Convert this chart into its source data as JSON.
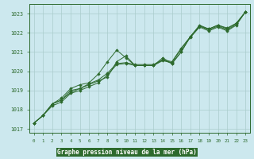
{
  "xlabel": "Graphe pression niveau de la mer (hPa)",
  "xlim": [
    -0.5,
    23.5
  ],
  "ylim": [
    1016.8,
    1023.5
  ],
  "yticks": [
    1017,
    1018,
    1019,
    1020,
    1021,
    1022,
    1023
  ],
  "xticks": [
    0,
    1,
    2,
    3,
    4,
    5,
    6,
    7,
    8,
    9,
    10,
    11,
    12,
    13,
    14,
    15,
    16,
    17,
    18,
    19,
    20,
    21,
    22,
    23
  ],
  "background_color": "#cce8ee",
  "grid_color": "#aacccc",
  "line_color": "#2d6a2d",
  "marker_color": "#2d6a2d",
  "xlabel_bg": "#2d6a2d",
  "xlabel_fg": "#ffffff",
  "series": [
    [
      1017.3,
      1017.7,
      1018.3,
      1018.5,
      1018.9,
      1019.1,
      1019.3,
      1019.5,
      1019.7,
      1020.5,
      1020.8,
      1020.3,
      1020.3,
      1020.3,
      1020.6,
      1020.4,
      1021.0,
      1021.8,
      1022.4,
      1022.2,
      1022.4,
      1022.2,
      1022.5,
      1023.1
    ],
    [
      1017.3,
      1017.7,
      1018.3,
      1018.5,
      1019.0,
      1019.1,
      1019.35,
      1019.55,
      1019.9,
      1020.4,
      1020.45,
      1020.35,
      1020.35,
      1020.35,
      1020.6,
      1020.5,
      1021.2,
      1021.8,
      1022.35,
      1022.15,
      1022.35,
      1022.15,
      1022.45,
      1023.1
    ],
    [
      1017.3,
      1017.7,
      1018.2,
      1018.4,
      1018.85,
      1019.0,
      1019.2,
      1019.4,
      1019.8,
      1020.35,
      1020.4,
      1020.3,
      1020.3,
      1020.3,
      1020.55,
      1020.45,
      1021.15,
      1021.75,
      1022.3,
      1022.1,
      1022.3,
      1022.1,
      1022.4,
      1023.1
    ],
    [
      1017.3,
      1017.7,
      1018.3,
      1018.6,
      1019.1,
      1019.3,
      1019.4,
      1019.85,
      1020.5,
      1021.1,
      1020.7,
      1020.3,
      1020.3,
      1020.3,
      1020.7,
      1020.4,
      1021.0,
      1021.8,
      1022.35,
      1022.2,
      1022.4,
      1022.25,
      1022.5,
      1023.1
    ]
  ]
}
